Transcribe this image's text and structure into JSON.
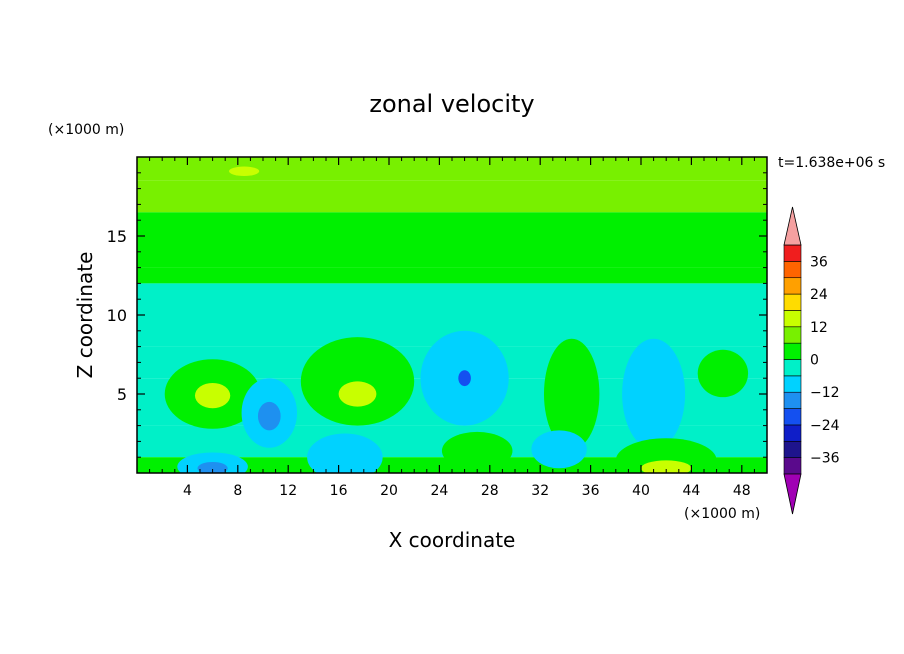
{
  "chart_data": {
    "type": "heatmap",
    "title": "zonal velocity",
    "xlabel": "X coordinate",
    "ylabel": "Z coordinate",
    "x_unit_label": "(×1000 m)",
    "y_unit_label": "(×1000 m)",
    "time_label": "t=1.638e+06 s",
    "xlim": [
      0,
      50
    ],
    "ylim": [
      0,
      20
    ],
    "x_ticks": [
      4,
      8,
      12,
      16,
      20,
      24,
      28,
      32,
      36,
      40,
      44,
      48
    ],
    "y_ticks": [
      5,
      10,
      15
    ],
    "x_tick_labels": [
      "4",
      "8",
      "12",
      "16",
      "20",
      "24",
      "28",
      "32",
      "36",
      "40",
      "44",
      "48"
    ],
    "y_tick_labels": [
      "5",
      "10",
      "15"
    ],
    "grid": false,
    "colorbar": {
      "levels": [
        -42,
        -36,
        -30,
        -24,
        -18,
        -12,
        -6,
        0,
        6,
        12,
        18,
        24,
        30,
        36,
        42
      ],
      "colors": [
        "#5a0a8c",
        "#1e148c",
        "#0f1ec8",
        "#1450f0",
        "#1e90f0",
        "#00d2ff",
        "#00f0c8",
        "#00f000",
        "#78f000",
        "#c8ff00",
        "#ffdc00",
        "#ffa000",
        "#ff6400",
        "#f01e1e"
      ],
      "under_color": "#a000b4",
      "over_color": "#f5a0a0",
      "tick_values": [
        36,
        24,
        12,
        0,
        -12,
        -24,
        -36
      ],
      "tick_labels": [
        "36",
        "24",
        "12",
        "0",
        "−12",
        "−24",
        "−36"
      ]
    },
    "field": {
      "layers": [
        {
          "z_range": [
            18.5,
            20
          ],
          "value": 10
        },
        {
          "z_range": [
            16.5,
            18.5
          ],
          "value": 7
        },
        {
          "z_range": [
            15,
            16.5
          ],
          "value": 4
        },
        {
          "z_range": [
            13,
            15
          ],
          "value": 1
        },
        {
          "z_range": [
            12,
            13
          ],
          "value": 3
        },
        {
          "z_range": [
            10,
            12
          ],
          "value": -3
        },
        {
          "z_range": [
            8,
            10
          ],
          "value": -5
        },
        {
          "z_range": [
            6,
            8
          ],
          "value": -4
        },
        {
          "z_range": [
            3,
            6
          ],
          "value": -2
        },
        {
          "z_range": [
            1,
            3
          ],
          "value": -4
        },
        {
          "z_range": [
            0,
            1
          ],
          "value": 2
        }
      ],
      "features": [
        {
          "x": 6,
          "z": 5,
          "rx": 3.8,
          "rz": 2.2,
          "value": 5
        },
        {
          "x": 6,
          "z": 4.9,
          "rx": 1.4,
          "rz": 0.8,
          "value": 13
        },
        {
          "x": 17.5,
          "z": 5.8,
          "rx": 4.5,
          "rz": 2.8,
          "value": 5
        },
        {
          "x": 17.5,
          "z": 5,
          "rx": 1.5,
          "rz": 0.8,
          "value": 13
        },
        {
          "x": 34.5,
          "z": 5,
          "rx": 2.2,
          "rz": 3.5,
          "value": 5
        },
        {
          "x": 46.5,
          "z": 6.3,
          "rx": 2,
          "rz": 1.5,
          "value": 3
        },
        {
          "x": 10.5,
          "z": 3.8,
          "rx": 2.2,
          "rz": 2.2,
          "value": -9
        },
        {
          "x": 10.5,
          "z": 3.6,
          "rx": 0.9,
          "rz": 0.9,
          "value": -14
        },
        {
          "x": 26,
          "z": 6,
          "rx": 3.5,
          "rz": 3,
          "value": -9
        },
        {
          "x": 26,
          "z": 6,
          "rx": 0.5,
          "rz": 0.5,
          "value": -19
        },
        {
          "x": 41,
          "z": 5,
          "rx": 2.5,
          "rz": 3.5,
          "value": -9
        },
        {
          "x": 6,
          "z": 0.4,
          "rx": 2.8,
          "rz": 0.9,
          "value": -9
        },
        {
          "x": 6,
          "z": 0.3,
          "rx": 1.2,
          "rz": 0.4,
          "value": -16
        },
        {
          "x": 16.5,
          "z": 1,
          "rx": 3,
          "rz": 1.5,
          "value": -9
        },
        {
          "x": 27,
          "z": 1.4,
          "rx": 2.8,
          "rz": 1.2,
          "value": 5
        },
        {
          "x": 33.5,
          "z": 1.5,
          "rx": 2.2,
          "rz": 1.2,
          "value": -9
        },
        {
          "x": 42,
          "z": 0.8,
          "rx": 4,
          "rz": 1.4,
          "value": 5
        },
        {
          "x": 42,
          "z": 0.3,
          "rx": 2,
          "rz": 0.5,
          "value": 14
        },
        {
          "x": 8.5,
          "z": 19.1,
          "rx": 1.2,
          "rz": 0.3,
          "value": 14
        },
        {
          "x": 24,
          "z": 14.5,
          "rx": 4,
          "rz": 0.6,
          "value": 3
        },
        {
          "x": 39,
          "z": 14.5,
          "rx": 5,
          "rz": 0.7,
          "value": 3
        }
      ]
    }
  }
}
